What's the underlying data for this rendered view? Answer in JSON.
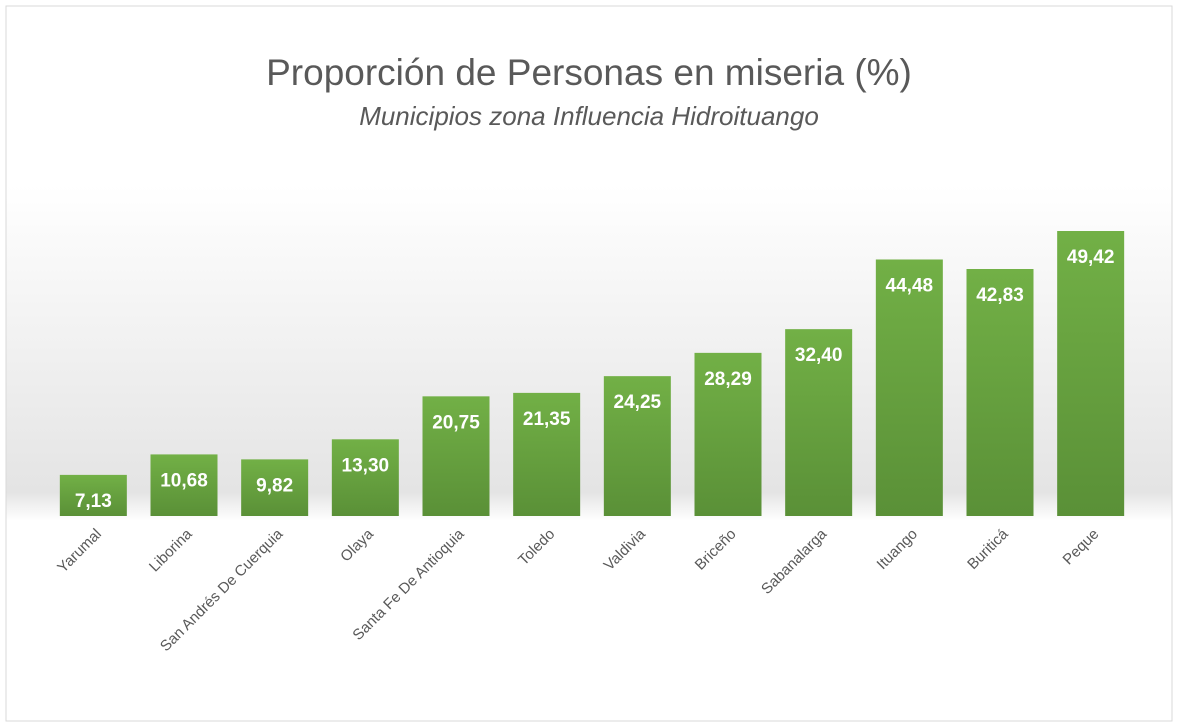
{
  "chart_data": {
    "type": "bar",
    "title": "Proporción de Personas en miseria (%)",
    "subtitle": "Municipios zona Influencia Hidroituango",
    "categories": [
      "Yarumal",
      "Liborina",
      "San Andrés De Cuerquia",
      "Olaya",
      "Santa Fe De Antioquia",
      "Toledo",
      "Valdivia",
      "Briceño",
      "Sabanalarga",
      "Ituango",
      "Buriticá",
      "Peque"
    ],
    "values": [
      7.13,
      10.68,
      9.82,
      13.3,
      20.75,
      21.35,
      24.25,
      28.29,
      32.4,
      44.48,
      42.83,
      49.42
    ],
    "value_labels": [
      "7,13",
      "10,68",
      "9,82",
      "13,30",
      "20,75",
      "21,35",
      "24,25",
      "28,29",
      "32,40",
      "44,48",
      "42,83",
      "49,42"
    ],
    "color": "#6aa84f"
  }
}
